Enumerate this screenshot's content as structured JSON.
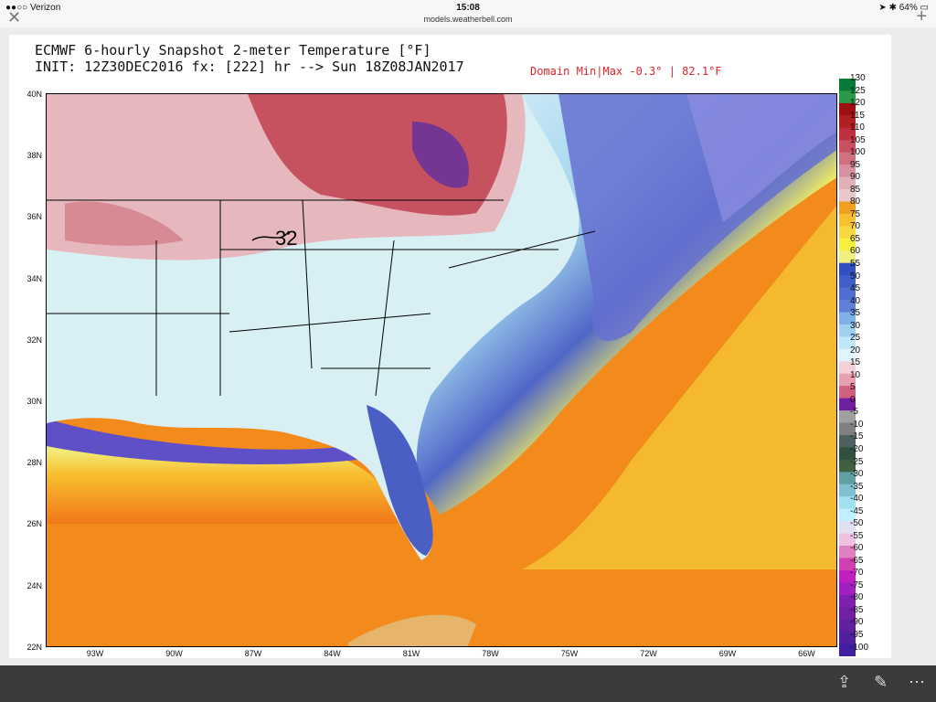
{
  "status_bar": {
    "carrier": "●●○○ Verizon",
    "time": "15:08",
    "battery": "64%",
    "url": "models.weatherbell.com"
  },
  "map": {
    "title_line1": "ECMWF 6-hourly Snapshot 2-meter Temperature [°F]",
    "title_line2": "INIT: 12Z30DEC2016 fx: [222] hr --> Sun 18Z08JAN2017",
    "domain_minmax": "Domain Min|Max -0.3° | 82.1°F",
    "lat_labels": [
      "40N",
      "38N",
      "36N",
      "34N",
      "32N",
      "30N",
      "28N",
      "26N",
      "24N",
      "22N"
    ],
    "lon_labels": [
      "93W",
      "90W",
      "87W",
      "84W",
      "81W",
      "78W",
      "75W",
      "72W",
      "69W",
      "66W"
    ],
    "annotation": "32",
    "colorbar_labels": [
      "130",
      "125",
      "120",
      "115",
      "110",
      "105",
      "100",
      "95",
      "90",
      "85",
      "80",
      "75",
      "70",
      "65",
      "60",
      "55",
      "50",
      "45",
      "40",
      "35",
      "30",
      "25",
      "20",
      "15",
      "10",
      "5",
      "0",
      "-5",
      "-10",
      "-15",
      "-20",
      "-25",
      "-30",
      "-35",
      "-40",
      "-45",
      "-50",
      "-55",
      "-60",
      "-65",
      "-70",
      "-75",
      "-80",
      "-85",
      "-90",
      "-95",
      "-100"
    ],
    "colorbar_colors": [
      "#0a7a3a",
      "#2a9a4a",
      "#a01010",
      "#b02020",
      "#c03040",
      "#c85060",
      "#d07080",
      "#d890a0",
      "#e0b0b8",
      "#e8c8cc",
      "#f0a020",
      "#f8c030",
      "#f8d840",
      "#f8f040",
      "#f0f080",
      "#3050c0",
      "#4060c8",
      "#5070d0",
      "#6080d8",
      "#80b0e8",
      "#a0d0f0",
      "#c0e8f8",
      "#e0f4fc",
      "#f4d0d8",
      "#e8a0b0",
      "#d06080",
      "#7020a0",
      "#a0a0a0",
      "#808080",
      "#506060",
      "#305040",
      "#406040",
      "#60a0a0",
      "#80c0d0",
      "#a0e0f0",
      "#c0f0ff",
      "#e0e0f0",
      "#f0c0e0",
      "#e080c0",
      "#d040b0",
      "#c020c0",
      "#a020c0",
      "#8020b0",
      "#7020a0",
      "#6020a0",
      "#5020a0",
      "#4020a0"
    ]
  }
}
